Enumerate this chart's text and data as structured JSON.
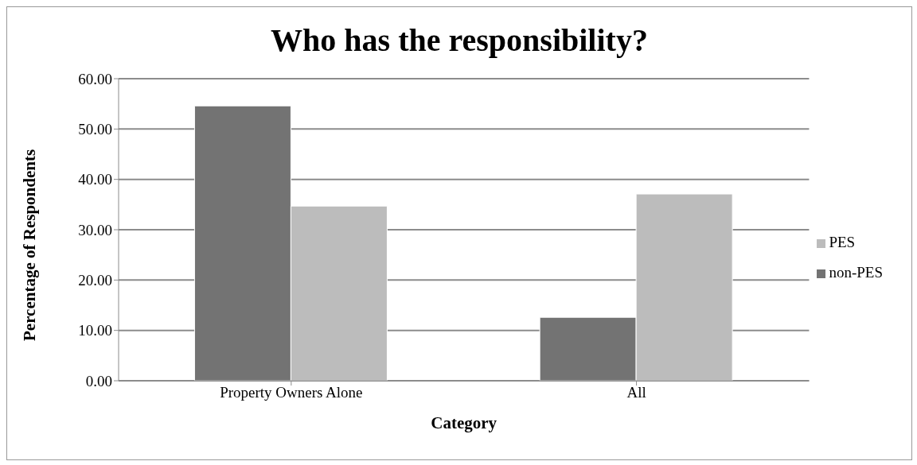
{
  "chart_data": {
    "type": "bar",
    "title": "Who has the responsibility?",
    "xlabel": "Category",
    "ylabel": "Percentage of Respondents",
    "categories": [
      "Property Owners Alone",
      "All"
    ],
    "series": [
      {
        "name": "non-PES",
        "color": "#737373",
        "values": [
          54.6,
          12.6
        ]
      },
      {
        "name": "PES",
        "color": "#bcbcbc",
        "values": [
          34.7,
          37.1
        ]
      }
    ],
    "ylim": [
      0,
      60
    ],
    "yticks": [
      {
        "value": 0,
        "label": "0.00"
      },
      {
        "value": 10,
        "label": "10.00"
      },
      {
        "value": 20,
        "label": "20.00"
      },
      {
        "value": 30,
        "label": "30.00"
      },
      {
        "value": 40,
        "label": "40.00"
      },
      {
        "value": 50,
        "label": "50.00"
      },
      {
        "value": 60,
        "label": "60.00"
      }
    ],
    "grid": "y",
    "legend": "right"
  }
}
